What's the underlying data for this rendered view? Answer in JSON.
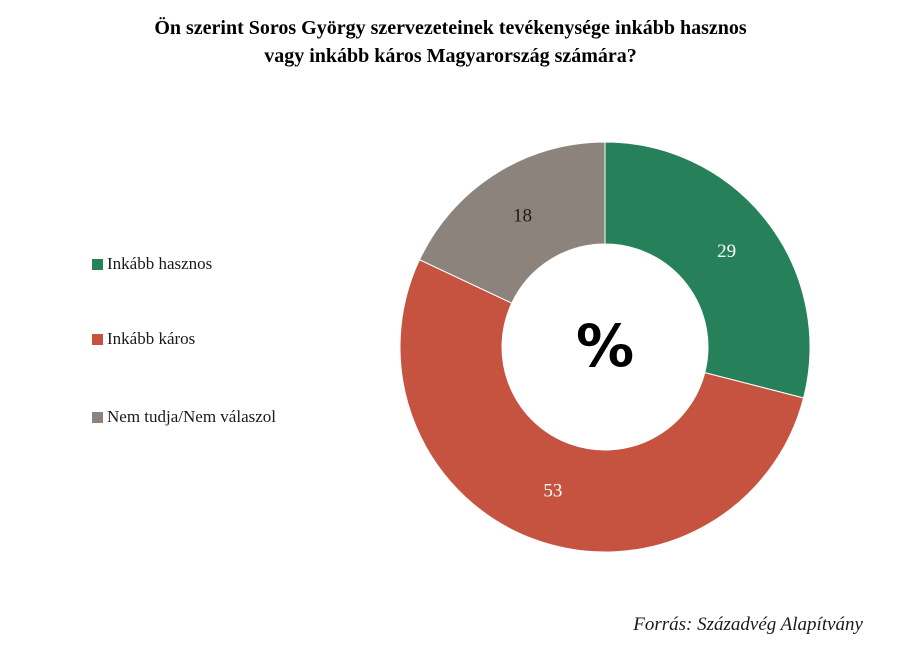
{
  "title_line1": "Ön szerint Soros György szervezeteinek tevékenysége inkább hasznos",
  "title_line2": "vagy inkább káros Magyarország számára?",
  "center_label": "%",
  "source": "Forrás: Századvég Alapítvány",
  "legend": [
    {
      "label": "Inkább hasznos",
      "color": "#26805a"
    },
    {
      "label": "Inkább káros",
      "color": "#c55340"
    },
    {
      "label": "Nem tudja/Nem válaszol",
      "color": "#8c847c"
    }
  ],
  "chart_data": {
    "type": "pie",
    "subtype": "donut",
    "title": "Ön szerint Soros György szervezeteinek tevékenysége inkább hasznos vagy inkább káros Magyarország számára?",
    "categories": [
      "Inkább hasznos",
      "Inkább káros",
      "Nem tudja/Nem válaszol"
    ],
    "values": [
      29,
      53,
      18
    ],
    "colors": [
      "#26805a",
      "#c55340",
      "#8c847c"
    ],
    "unit": "%",
    "center_label": "%",
    "legend_position": "left",
    "source": "Forrás: Századvég Alapítvány"
  }
}
